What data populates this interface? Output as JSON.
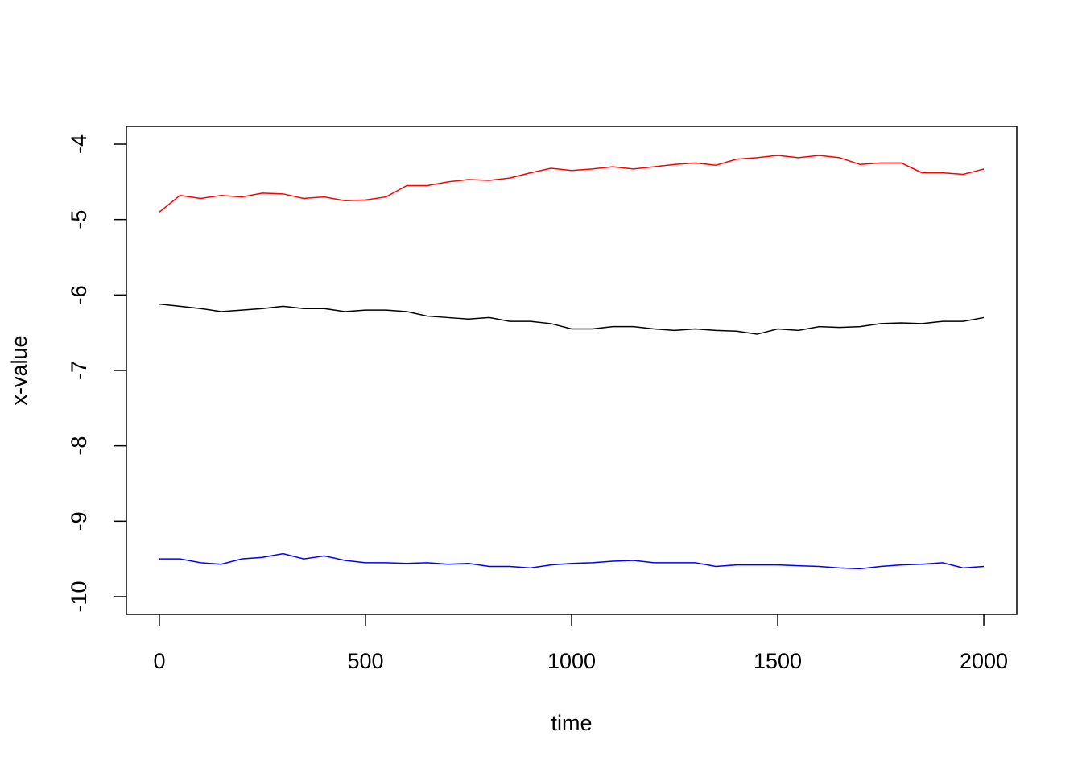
{
  "chart_data": {
    "type": "line",
    "xlabel": "time",
    "ylabel": "x-value",
    "x": [
      0,
      50,
      100,
      150,
      200,
      250,
      300,
      350,
      400,
      450,
      500,
      550,
      600,
      650,
      700,
      750,
      800,
      850,
      900,
      950,
      1000,
      1050,
      1100,
      1150,
      1200,
      1250,
      1300,
      1350,
      1400,
      1450,
      1500,
      1550,
      1600,
      1650,
      1700,
      1750,
      1800,
      1850,
      1900,
      1950,
      2000
    ],
    "series": [
      {
        "color": "#ff0000",
        "values": [
          -4.9,
          -4.68,
          -4.72,
          -4.68,
          -4.7,
          -4.65,
          -4.66,
          -4.72,
          -4.7,
          -4.75,
          -4.74,
          -4.7,
          -4.55,
          -4.55,
          -4.5,
          -4.47,
          -4.48,
          -4.45,
          -4.38,
          -4.32,
          -4.35,
          -4.33,
          -4.3,
          -4.33,
          -4.3,
          -4.27,
          -4.25,
          -4.28,
          -4.2,
          -4.18,
          -4.15,
          -4.18,
          -4.15,
          -4.18,
          -4.27,
          -4.25,
          -4.25,
          -4.38,
          -4.38,
          -4.4,
          -4.33
        ]
      },
      {
        "color": "#000000",
        "values": [
          -6.12,
          -6.15,
          -6.18,
          -6.22,
          -6.2,
          -6.18,
          -6.15,
          -6.18,
          -6.18,
          -6.22,
          -6.2,
          -6.2,
          -6.22,
          -6.28,
          -6.3,
          -6.32,
          -6.3,
          -6.35,
          -6.35,
          -6.38,
          -6.45,
          -6.45,
          -6.42,
          -6.42,
          -6.45,
          -6.47,
          -6.45,
          -6.47,
          -6.48,
          -6.52,
          -6.45,
          -6.47,
          -6.42,
          -6.43,
          -6.42,
          -6.38,
          -6.37,
          -6.38,
          -6.35,
          -6.35,
          -6.3
        ]
      },
      {
        "color": "#0000ff",
        "values": [
          -9.5,
          -9.5,
          -9.55,
          -9.57,
          -9.5,
          -9.48,
          -9.43,
          -9.5,
          -9.46,
          -9.52,
          -9.55,
          -9.55,
          -9.56,
          -9.55,
          -9.57,
          -9.56,
          -9.6,
          -9.6,
          -9.62,
          -9.58,
          -9.56,
          -9.55,
          -9.53,
          -9.52,
          -9.55,
          -9.55,
          -9.55,
          -9.6,
          -9.58,
          -9.58,
          -9.58,
          -9.59,
          -9.6,
          -9.62,
          -9.63,
          -9.6,
          -9.58,
          -9.57,
          -9.55,
          -9.62,
          -9.6
        ]
      }
    ],
    "xlim": [
      -80,
      2080
    ],
    "xticks": [
      0,
      500,
      1000,
      1500,
      2000
    ],
    "ylim": [
      -10.235,
      -3.765
    ],
    "yticks": [
      -10,
      -9,
      -8,
      -7,
      -6,
      -5,
      -4
    ]
  }
}
